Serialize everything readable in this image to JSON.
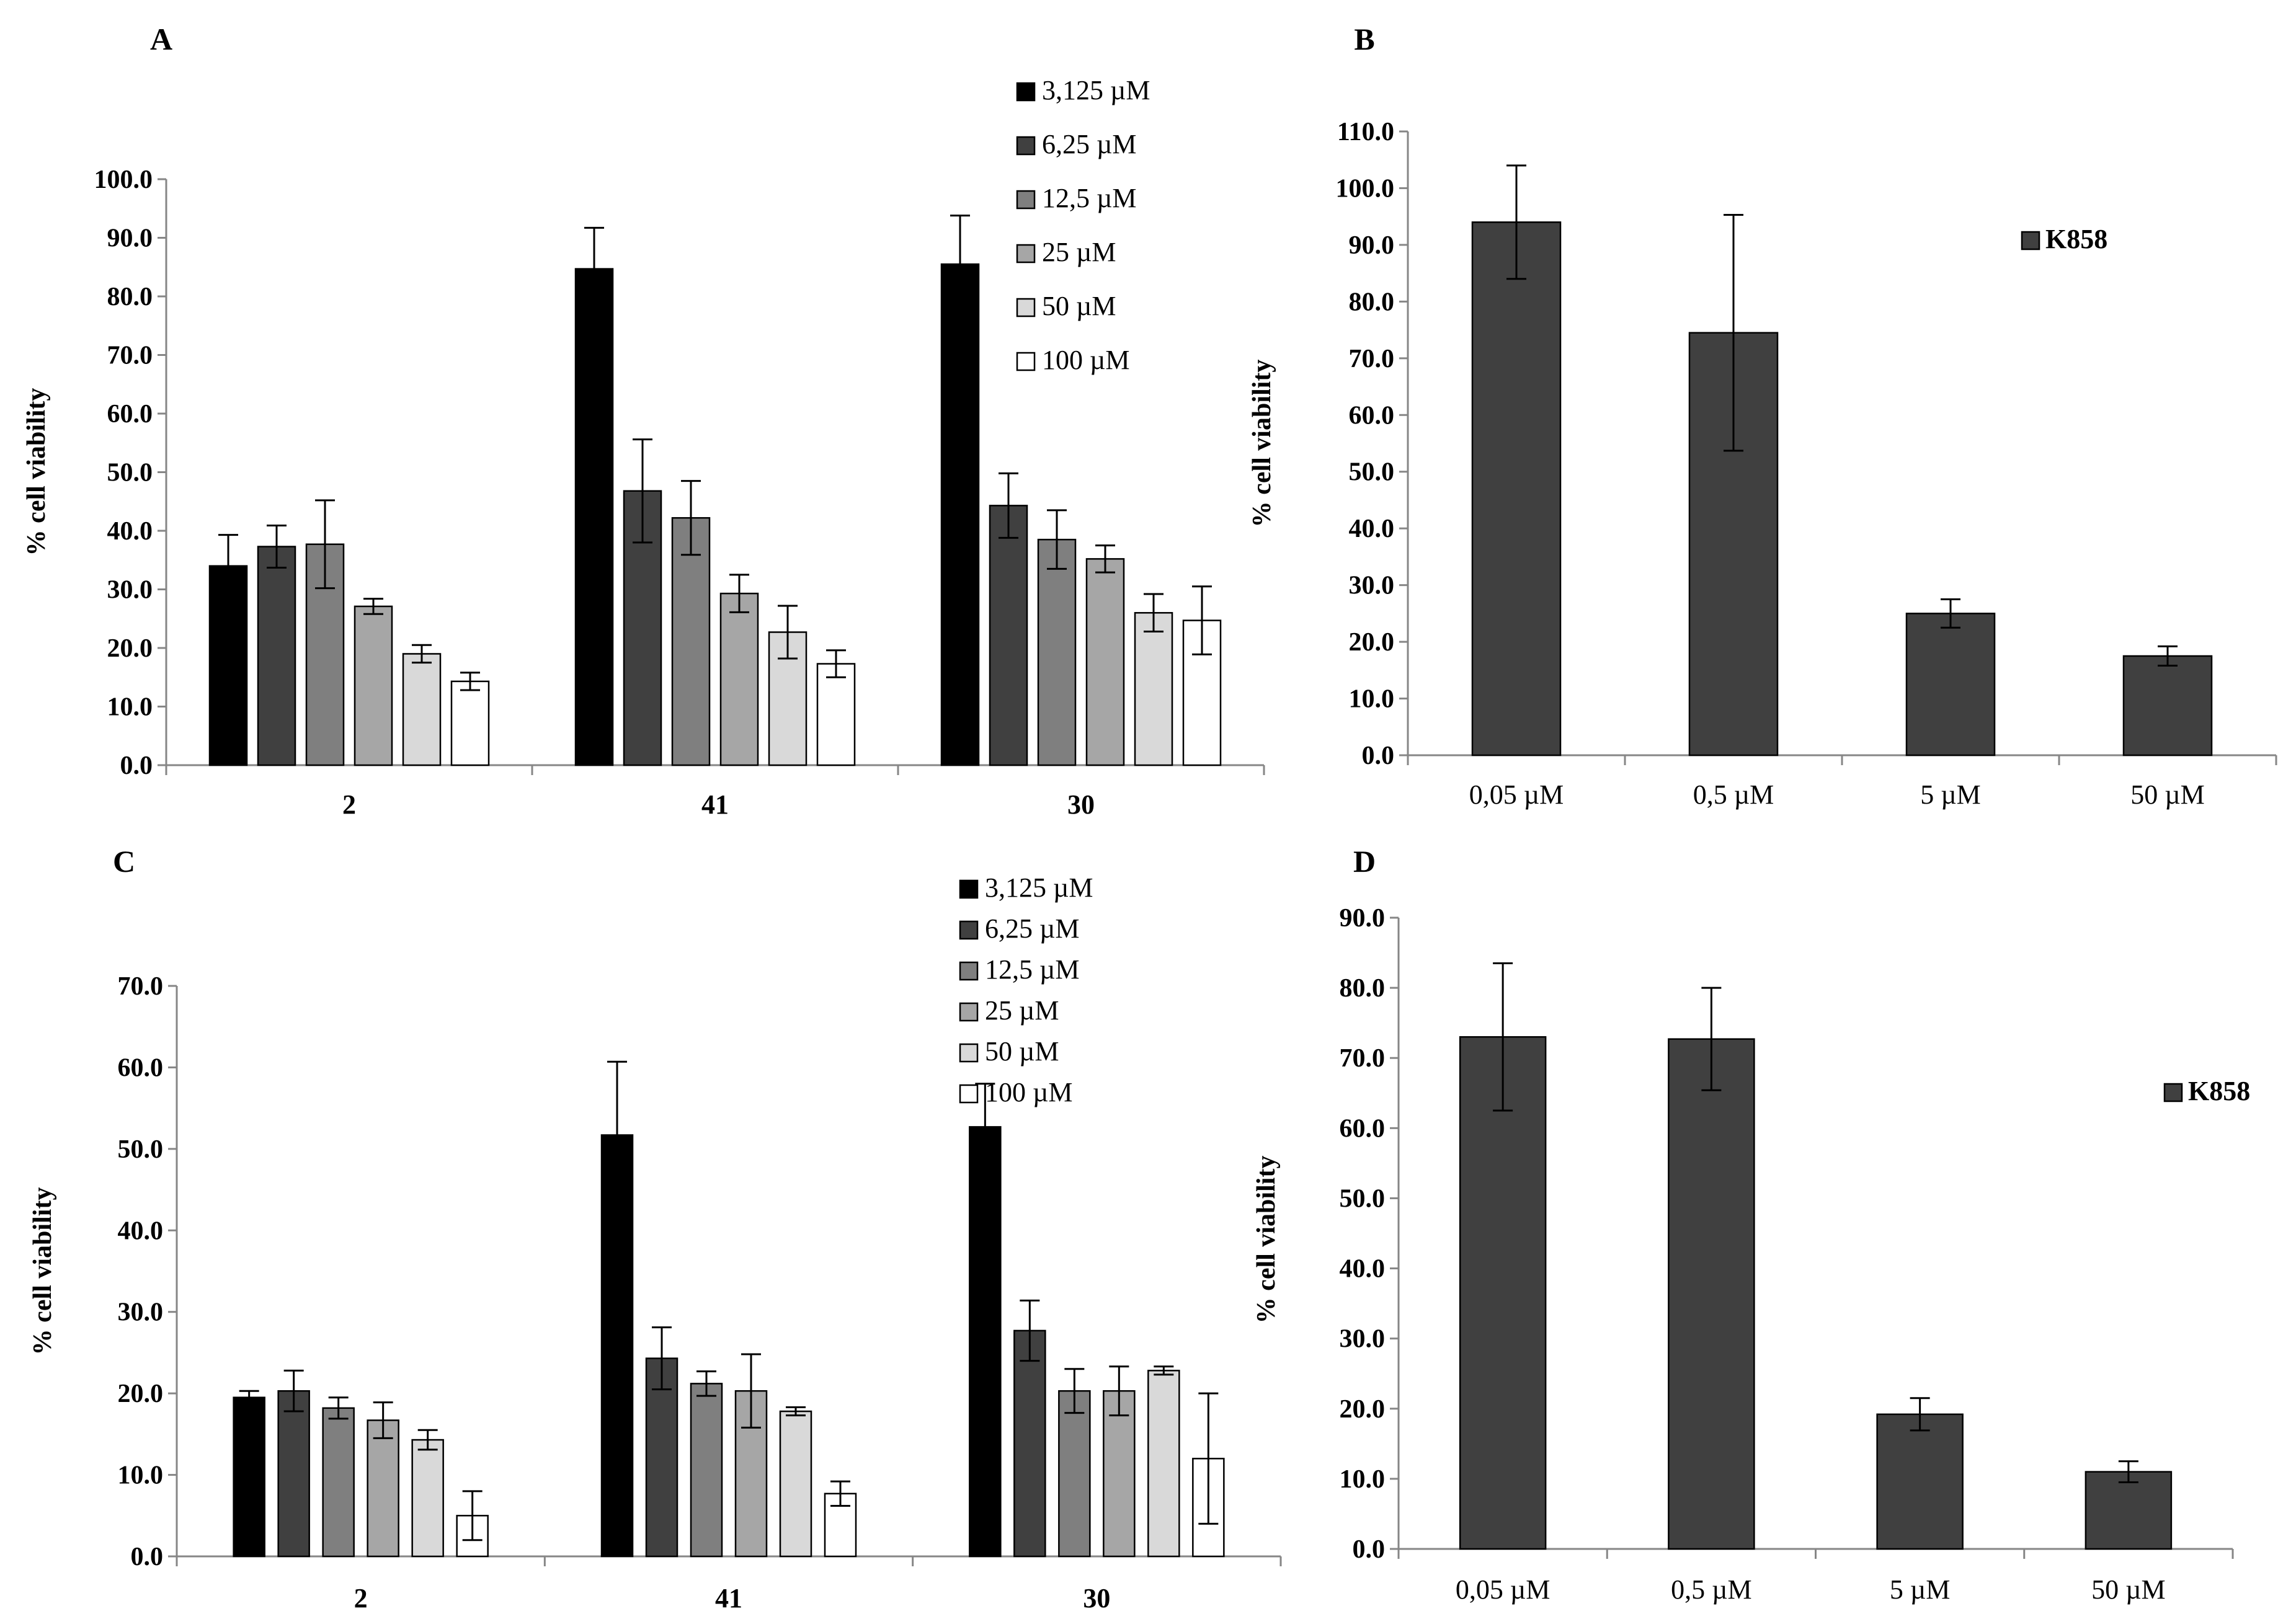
{
  "chart_data": [
    {
      "panel": "A",
      "type": "bar",
      "title": "",
      "xlabel": "",
      "ylabel": "% cell viability",
      "ylim": [
        0,
        100
      ],
      "ytick_step": 10,
      "categories": [
        "2",
        "41",
        "30"
      ],
      "legend_position": "top-right",
      "series": [
        {
          "name": "3,125 µM",
          "color": "#000000",
          "values": [
            34.0,
            84.7,
            85.5
          ],
          "errors": [
            5.3,
            7.0,
            8.3
          ]
        },
        {
          "name": "6,25 µM",
          "color": "#404040",
          "values": [
            37.3,
            46.8,
            44.3
          ],
          "errors": [
            3.6,
            8.8,
            5.5
          ]
        },
        {
          "name": "12,5 µM",
          "color": "#7f7f7f",
          "values": [
            37.7,
            42.2,
            38.5
          ],
          "errors": [
            7.5,
            6.3,
            5.0
          ]
        },
        {
          "name": "25 µM",
          "color": "#a6a6a6",
          "values": [
            27.1,
            29.3,
            35.2
          ],
          "errors": [
            1.3,
            3.2,
            2.3
          ]
        },
        {
          "name": "50 µM",
          "color": "#d9d9d9",
          "values": [
            19.0,
            22.7,
            26.0
          ],
          "errors": [
            1.5,
            4.5,
            3.2
          ]
        },
        {
          "name": "100 µM",
          "color": "#ffffff",
          "values": [
            14.3,
            17.3,
            24.7
          ],
          "errors": [
            1.5,
            2.3,
            5.8
          ]
        }
      ]
    },
    {
      "panel": "B",
      "type": "bar",
      "title": "",
      "xlabel": "",
      "ylabel": "% cell viability",
      "ylim": [
        0,
        110
      ],
      "ytick_step": 10,
      "categories": [
        "0,05 µM",
        "0,5 µM",
        "5 µM",
        "50 µM"
      ],
      "legend_position": "upper-right",
      "series": [
        {
          "name": "K858",
          "color": "#404040",
          "values": [
            94.0,
            74.5,
            25.0,
            17.5
          ],
          "errors": [
            10.0,
            20.8,
            2.5,
            1.7
          ]
        }
      ]
    },
    {
      "panel": "C",
      "type": "bar",
      "title": "",
      "xlabel": "",
      "ylabel": "% cell viability",
      "ylim": [
        0,
        70
      ],
      "ytick_step": 10,
      "categories": [
        "2",
        "41",
        "30"
      ],
      "legend_position": "top-right",
      "series": [
        {
          "name": "3,125 µM",
          "color": "#000000",
          "values": [
            19.5,
            51.7,
            52.7
          ],
          "errors": [
            0.8,
            9.0,
            5.3
          ]
        },
        {
          "name": "6,25 µM",
          "color": "#404040",
          "values": [
            20.3,
            24.3,
            27.7
          ],
          "errors": [
            2.5,
            3.8,
            3.7
          ]
        },
        {
          "name": "12,5 µM",
          "color": "#7f7f7f",
          "values": [
            18.2,
            21.2,
            20.3
          ],
          "errors": [
            1.3,
            1.5,
            2.7
          ]
        },
        {
          "name": "25 µM",
          "color": "#a6a6a6",
          "values": [
            16.7,
            20.3,
            20.3
          ],
          "errors": [
            2.2,
            4.5,
            3.0
          ]
        },
        {
          "name": "50 µM",
          "color": "#d9d9d9",
          "values": [
            14.3,
            17.8,
            22.8
          ],
          "errors": [
            1.2,
            0.5,
            0.5
          ]
        },
        {
          "name": "100 µM",
          "color": "#ffffff",
          "values": [
            5.0,
            7.7,
            12.0
          ],
          "errors": [
            3.0,
            1.5,
            8.0
          ]
        }
      ]
    },
    {
      "panel": "D",
      "type": "bar",
      "title": "",
      "xlabel": "",
      "ylabel": "% cell viability",
      "ylim": [
        0,
        90
      ],
      "ytick_step": 10,
      "categories": [
        "0,05 µM",
        "0,5 µM",
        "5 µM",
        "50 µM"
      ],
      "legend_position": "upper-right",
      "series": [
        {
          "name": "K858",
          "color": "#404040",
          "values": [
            73.0,
            72.7,
            19.2,
            11.0
          ],
          "errors": [
            10.5,
            7.3,
            2.3,
            1.5
          ]
        }
      ]
    }
  ]
}
